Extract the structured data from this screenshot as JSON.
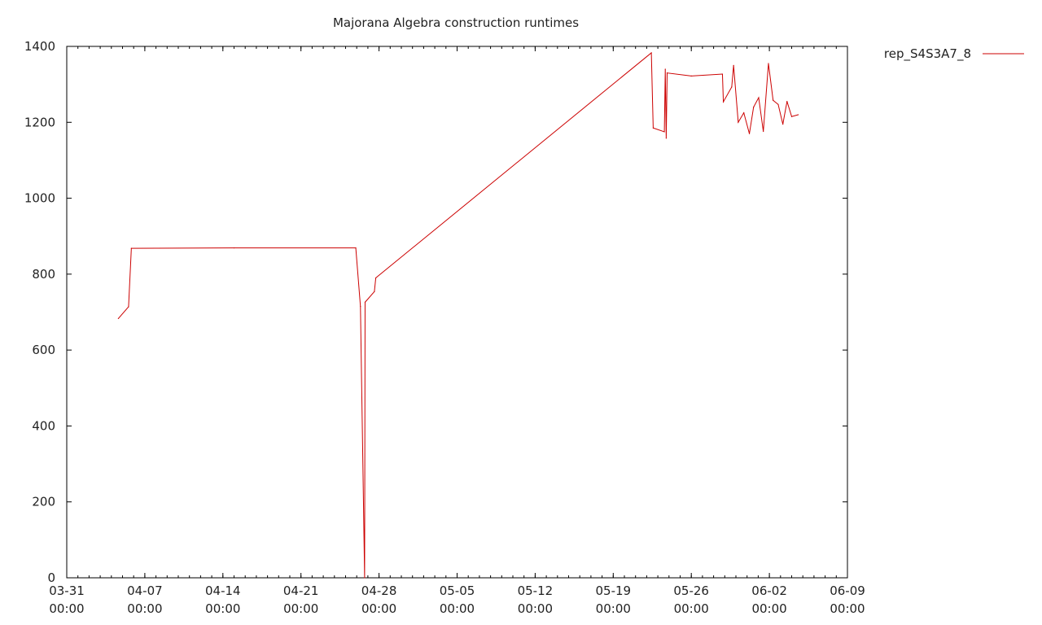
{
  "colors": {
    "series": "#cc0000",
    "axis": "#000000",
    "text": "#222222"
  },
  "chart_data": {
    "type": "line",
    "title": "Majorana Algebra construction runtimes",
    "xlabel": "",
    "ylabel": "",
    "x_scale": "time",
    "xlim": [
      "2018-03-31 00:00",
      "2018-06-09 00:00"
    ],
    "ylim": [
      0,
      1400
    ],
    "x_ticks": [
      {
        "value": "2018-03-31 00:00",
        "line1": "03-31",
        "line2": "00:00"
      },
      {
        "value": "2018-04-07 00:00",
        "line1": "04-07",
        "line2": "00:00"
      },
      {
        "value": "2018-04-14 00:00",
        "line1": "04-14",
        "line2": "00:00"
      },
      {
        "value": "2018-04-21 00:00",
        "line1": "04-21",
        "line2": "00:00"
      },
      {
        "value": "2018-04-28 00:00",
        "line1": "04-28",
        "line2": "00:00"
      },
      {
        "value": "2018-05-05 00:00",
        "line1": "05-05",
        "line2": "00:00"
      },
      {
        "value": "2018-05-12 00:00",
        "line1": "05-12",
        "line2": "00:00"
      },
      {
        "value": "2018-05-19 00:00",
        "line1": "05-19",
        "line2": "00:00"
      },
      {
        "value": "2018-05-26 00:00",
        "line1": "05-26",
        "line2": "00:00"
      },
      {
        "value": "2018-06-02 00:00",
        "line1": "06-02",
        "line2": "00:00"
      },
      {
        "value": "2018-06-09 00:00",
        "line1": "06-09",
        "line2": "00:00"
      }
    ],
    "y_ticks": [
      {
        "value": 0,
        "label": "0"
      },
      {
        "value": 200,
        "label": "200"
      },
      {
        "value": 400,
        "label": "400"
      },
      {
        "value": 600,
        "label": "600"
      },
      {
        "value": 800,
        "label": "800"
      },
      {
        "value": 1000,
        "label": "1000"
      },
      {
        "value": 1200,
        "label": "1200"
      },
      {
        "value": 1400,
        "label": "1400"
      }
    ],
    "grid": false,
    "legend": "top-right",
    "series": [
      {
        "name": "rep_S4S3A7_8",
        "points": [
          [
            "2018-04-04 15:00",
            683
          ],
          [
            "2018-04-05 13:00",
            714
          ],
          [
            "2018-04-05 19:00",
            868
          ],
          [
            "2018-04-15 00:00",
            869
          ],
          [
            "2018-04-25 22:00",
            869
          ],
          [
            "2018-04-26 08:00",
            715
          ],
          [
            "2018-04-26 17:00",
            0
          ],
          [
            "2018-04-26 18:00",
            726
          ],
          [
            "2018-04-27 14:00",
            754
          ],
          [
            "2018-04-27 17:00",
            790
          ],
          [
            "2018-05-22 10:00",
            1383
          ],
          [
            "2018-05-22 14:00",
            1185
          ],
          [
            "2018-05-23 14:00",
            1175
          ],
          [
            "2018-05-23 16:00",
            1340
          ],
          [
            "2018-05-23 18:00",
            1158
          ],
          [
            "2018-05-23 20:00",
            1330
          ],
          [
            "2018-05-26 00:00",
            1322
          ],
          [
            "2018-05-28 19:00",
            1327
          ],
          [
            "2018-05-28 21:00",
            1254
          ],
          [
            "2018-05-29 15:00",
            1293
          ],
          [
            "2018-05-29 19:00",
            1350
          ],
          [
            "2018-05-30 05:00",
            1200
          ],
          [
            "2018-05-30 17:00",
            1225
          ],
          [
            "2018-05-31 05:00",
            1170
          ],
          [
            "2018-05-31 14:00",
            1240
          ],
          [
            "2018-06-01 01:00",
            1265
          ],
          [
            "2018-06-01 11:00",
            1176
          ],
          [
            "2018-06-01 22:00",
            1355
          ],
          [
            "2018-06-02 08:00",
            1258
          ],
          [
            "2018-06-02 19:00",
            1247
          ],
          [
            "2018-06-03 05:00",
            1195
          ],
          [
            "2018-06-03 14:00",
            1255
          ],
          [
            "2018-06-04 00:00",
            1215
          ],
          [
            "2018-06-04 14:00",
            1220
          ]
        ]
      }
    ]
  }
}
